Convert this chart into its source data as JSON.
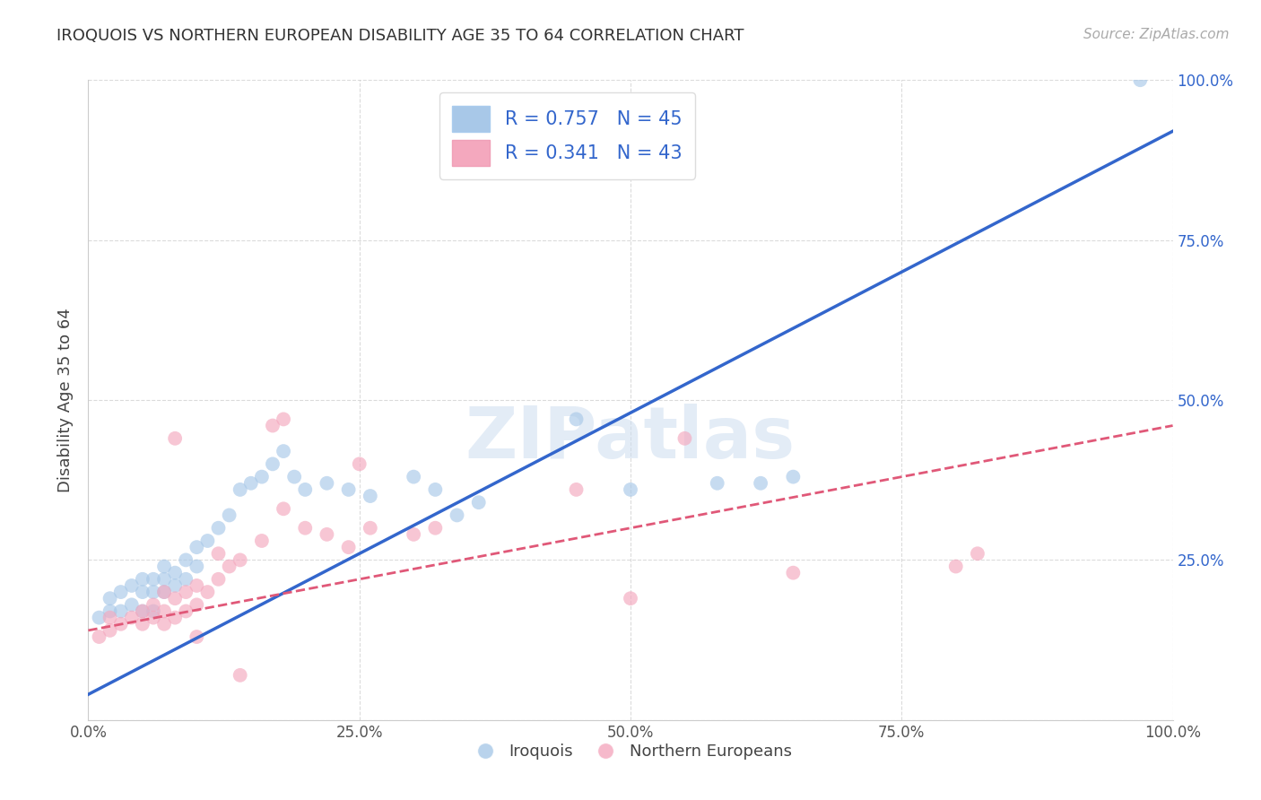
{
  "title": "IROQUOIS VS NORTHERN EUROPEAN DISABILITY AGE 35 TO 64 CORRELATION CHART",
  "source": "Source: ZipAtlas.com",
  "ylabel": "Disability Age 35 to 64",
  "watermark": "ZIPatlas",
  "legend_blue_R": "0.757",
  "legend_blue_N": "45",
  "legend_pink_R": "0.341",
  "legend_pink_N": "43",
  "blue_dot_color": "#a8c8e8",
  "pink_dot_color": "#f4a8be",
  "blue_line_color": "#3366cc",
  "pink_line_color": "#e05878",
  "iroquois_x": [
    0.01,
    0.02,
    0.02,
    0.03,
    0.03,
    0.04,
    0.04,
    0.05,
    0.05,
    0.05,
    0.06,
    0.06,
    0.06,
    0.07,
    0.07,
    0.07,
    0.08,
    0.08,
    0.09,
    0.09,
    0.1,
    0.1,
    0.11,
    0.12,
    0.13,
    0.14,
    0.15,
    0.16,
    0.17,
    0.18,
    0.19,
    0.2,
    0.22,
    0.24,
    0.26,
    0.3,
    0.32,
    0.45,
    0.5,
    0.58,
    0.62,
    0.65,
    0.34,
    0.36,
    0.97
  ],
  "iroquois_y": [
    0.16,
    0.17,
    0.19,
    0.17,
    0.2,
    0.18,
    0.21,
    0.17,
    0.2,
    0.22,
    0.17,
    0.2,
    0.22,
    0.2,
    0.22,
    0.24,
    0.21,
    0.23,
    0.22,
    0.25,
    0.24,
    0.27,
    0.28,
    0.3,
    0.32,
    0.36,
    0.37,
    0.38,
    0.4,
    0.42,
    0.38,
    0.36,
    0.37,
    0.36,
    0.35,
    0.38,
    0.36,
    0.47,
    0.36,
    0.37,
    0.37,
    0.38,
    0.32,
    0.34,
    1.0
  ],
  "northern_x": [
    0.01,
    0.02,
    0.02,
    0.03,
    0.04,
    0.05,
    0.05,
    0.06,
    0.06,
    0.07,
    0.07,
    0.07,
    0.08,
    0.08,
    0.09,
    0.09,
    0.1,
    0.1,
    0.11,
    0.12,
    0.13,
    0.14,
    0.16,
    0.17,
    0.18,
    0.2,
    0.22,
    0.24,
    0.26,
    0.3,
    0.32,
    0.45,
    0.5,
    0.55,
    0.65,
    0.8,
    0.82,
    0.18,
    0.25,
    0.08,
    0.1,
    0.12,
    0.14
  ],
  "northern_y": [
    0.13,
    0.14,
    0.16,
    0.15,
    0.16,
    0.15,
    0.17,
    0.16,
    0.18,
    0.15,
    0.17,
    0.2,
    0.16,
    0.19,
    0.17,
    0.2,
    0.18,
    0.21,
    0.2,
    0.22,
    0.24,
    0.25,
    0.28,
    0.46,
    0.33,
    0.3,
    0.29,
    0.27,
    0.3,
    0.29,
    0.3,
    0.36,
    0.19,
    0.44,
    0.23,
    0.24,
    0.26,
    0.47,
    0.4,
    0.44,
    0.13,
    0.26,
    0.07
  ],
  "blue_trend_x": [
    0.0,
    1.0
  ],
  "blue_trend_y": [
    0.04,
    0.92
  ],
  "pink_trend_x": [
    0.0,
    1.0
  ],
  "pink_trend_y": [
    0.14,
    0.46
  ],
  "xlim": [
    0.0,
    1.0
  ],
  "ylim": [
    0.0,
    1.0
  ],
  "xtick_vals": [
    0.0,
    0.25,
    0.5,
    0.75,
    1.0
  ],
  "ytick_vals": [
    0.0,
    0.25,
    0.5,
    0.75,
    1.0
  ],
  "xticklabels": [
    "0.0%",
    "25.0%",
    "50.0%",
    "75.0%",
    "100.0%"
  ],
  "left_yticklabels": [
    "",
    "",
    "",
    "",
    ""
  ],
  "right_yticklabels_vals": [
    0.25,
    0.5,
    0.75,
    1.0
  ],
  "right_yticklabels": [
    "25.0%",
    "50.0%",
    "75.0%",
    "100.0%"
  ],
  "figsize": [
    14.06,
    8.92
  ],
  "dpi": 100
}
